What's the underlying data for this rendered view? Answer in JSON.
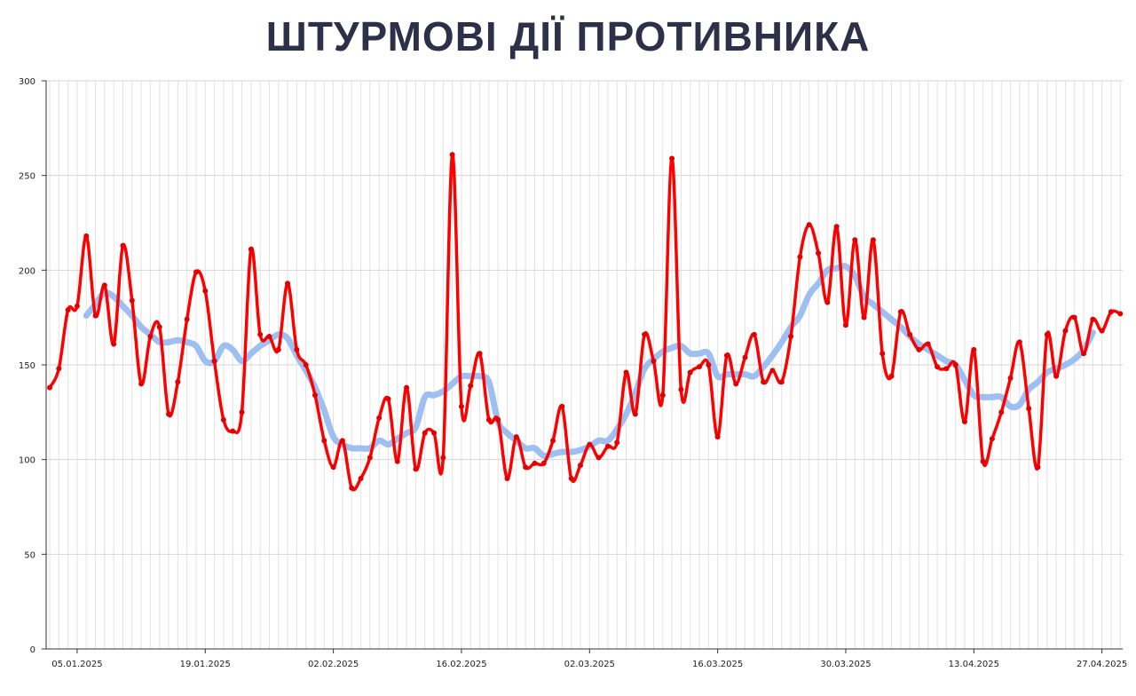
{
  "chart_data": {
    "type": "line",
    "title": "ШТУРМОВІ ДІЇ ПРОТИВНИКА",
    "xlabel": "",
    "ylabel": "",
    "ylim": [
      0,
      300
    ],
    "yticks": [
      0,
      50,
      100,
      150,
      200,
      250,
      300
    ],
    "xtick_labels": [
      "05.01.2025",
      "19.01.2025",
      "02.02.2025",
      "16.02.2025",
      "02.03.2025",
      "16.03.2025",
      "30.03.2025",
      "13.04.2025",
      "27.04.2025"
    ],
    "grid": true,
    "x": [
      "02.01.2025",
      "03.01.2025",
      "04.01.2025",
      "05.01.2025",
      "06.01.2025",
      "07.01.2025",
      "08.01.2025",
      "09.01.2025",
      "10.01.2025",
      "11.01.2025",
      "12.01.2025",
      "13.01.2025",
      "14.01.2025",
      "15.01.2025",
      "16.01.2025",
      "17.01.2025",
      "18.01.2025",
      "19.01.2025",
      "20.01.2025",
      "21.01.2025",
      "22.01.2025",
      "23.01.2025",
      "24.01.2025",
      "25.01.2025",
      "26.01.2025",
      "27.01.2025",
      "28.01.2025",
      "29.01.2025",
      "30.01.2025",
      "31.01.2025",
      "01.02.2025",
      "02.02.2025",
      "03.02.2025",
      "04.02.2025",
      "05.02.2025",
      "06.02.2025",
      "07.02.2025",
      "08.02.2025",
      "09.02.2025",
      "10.02.2025",
      "11.02.2025",
      "12.02.2025",
      "13.02.2025",
      "14.02.2025",
      "15.02.2025",
      "16.02.2025",
      "17.02.2025",
      "18.02.2025",
      "19.02.2025",
      "20.02.2025",
      "21.02.2025",
      "22.02.2025",
      "23.02.2025",
      "24.02.2025",
      "25.02.2025",
      "26.02.2025",
      "27.02.2025",
      "28.02.2025",
      "01.03.2025",
      "02.03.2025",
      "03.03.2025",
      "04.03.2025",
      "05.03.2025",
      "06.03.2025",
      "07.03.2025",
      "08.03.2025",
      "09.03.2025",
      "10.03.2025",
      "11.03.2025",
      "12.03.2025",
      "13.03.2025",
      "14.03.2025",
      "15.03.2025",
      "16.03.2025",
      "17.03.2025",
      "18.03.2025",
      "19.03.2025",
      "20.03.2025",
      "21.03.2025",
      "22.03.2025",
      "23.03.2025",
      "24.03.2025",
      "25.03.2025",
      "26.03.2025",
      "27.03.2025",
      "28.03.2025",
      "29.03.2025",
      "30.03.2025",
      "31.03.2025",
      "01.04.2025",
      "02.04.2025",
      "03.04.2025",
      "04.04.2025",
      "05.04.2025",
      "06.04.2025",
      "07.04.2025",
      "08.04.2025",
      "09.04.2025",
      "10.04.2025",
      "11.04.2025",
      "12.04.2025",
      "13.04.2025",
      "14.04.2025",
      "15.04.2025",
      "16.04.2025",
      "17.04.2025",
      "18.04.2025",
      "19.04.2025",
      "20.04.2025",
      "21.04.2025",
      "22.04.2025",
      "23.04.2025",
      "24.04.2025",
      "25.04.2025",
      "26.04.2025",
      "27.04.2025",
      "28.04.2025",
      "29.04.2025"
    ],
    "series": [
      {
        "color": "#ff0000",
        "values": [
          138,
          148,
          179,
          181,
          218,
          176,
          192,
          161,
          213,
          184,
          140,
          165,
          170,
          124,
          141,
          174,
          199,
          189,
          152,
          121,
          115,
          125,
          211,
          166,
          165,
          158,
          193,
          158,
          150,
          134,
          110,
          96,
          110,
          85,
          90,
          101,
          122,
          132,
          99,
          138,
          95,
          114,
          114,
          101,
          261,
          128,
          139,
          156,
          121,
          121,
          90,
          112,
          96,
          98,
          98,
          110,
          128,
          90,
          97,
          108,
          101,
          107,
          109,
          146,
          124,
          166,
          152,
          134,
          259,
          137,
          146,
          149,
          150,
          112,
          155,
          140,
          154,
          166,
          141,
          147,
          141,
          165,
          207,
          224,
          209,
          183,
          223,
          171,
          216,
          175,
          216,
          156,
          144,
          178,
          166,
          158,
          161,
          149,
          148,
          150,
          120,
          158,
          99,
          111,
          125,
          143,
          162,
          127,
          96,
          166,
          144,
          168,
          175,
          156,
          174,
          168,
          178,
          177
        ]
      },
      {
        "color": "#92b8f0",
        "values": [
          null,
          null,
          null,
          null,
          176,
          182,
          188,
          186,
          181,
          176,
          170,
          166,
          162,
          162,
          163,
          162,
          160,
          152,
          152,
          160,
          158,
          152,
          156,
          160,
          163,
          166,
          164,
          155,
          147,
          138,
          126,
          112,
          108,
          106,
          106,
          106,
          110,
          108,
          111,
          114,
          117,
          133,
          134,
          136,
          140,
          144,
          144,
          144,
          141,
          120,
          114,
          110,
          106,
          106,
          102,
          103,
          104,
          104,
          105,
          107,
          110,
          110,
          116,
          124,
          135,
          148,
          153,
          157,
          159,
          160,
          156,
          156,
          156,
          144,
          145,
          145,
          145,
          144,
          149,
          155,
          162,
          170,
          176,
          187,
          193,
          200,
          201,
          202,
          197,
          186,
          182,
          178,
          174,
          170,
          165,
          161,
          158,
          155,
          152,
          150,
          142,
          134,
          133,
          133,
          133,
          128,
          129,
          137,
          141,
          146,
          148,
          150,
          153,
          158,
          167,
          null,
          null,
          null
        ]
      }
    ]
  }
}
